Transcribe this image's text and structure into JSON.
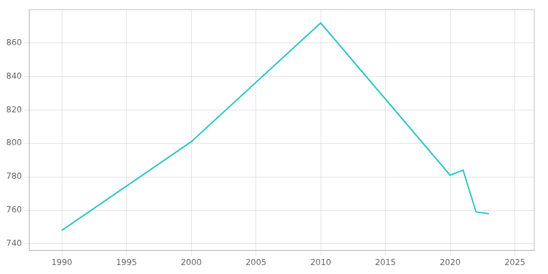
{
  "chart_data": {
    "type": "line",
    "x": [
      1990,
      2000,
      2010,
      2020,
      2021,
      2022,
      2023
    ],
    "values": [
      748,
      801,
      872,
      781,
      784,
      759,
      758
    ],
    "color": "#2EC4C4",
    "xlim": [
      1987.5,
      2026.5
    ],
    "ylim": [
      736,
      880
    ],
    "xticks": [
      1990,
      1995,
      2000,
      2005,
      2010,
      2015,
      2020,
      2025
    ],
    "yticks": [
      740,
      760,
      780,
      800,
      820,
      840,
      860
    ],
    "grid": true
  }
}
